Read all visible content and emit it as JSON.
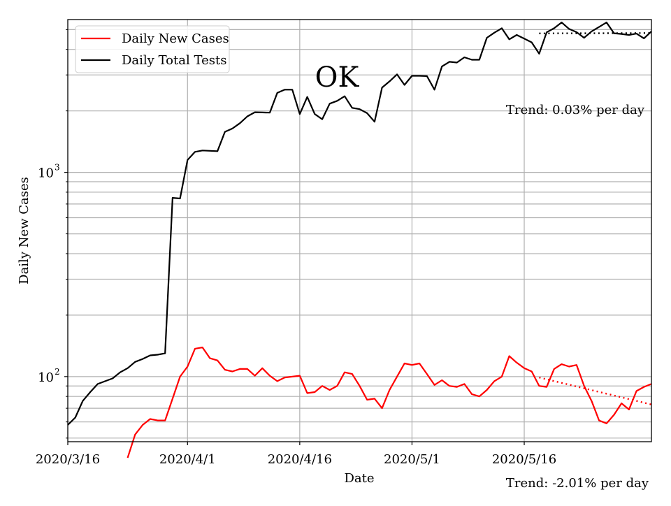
{
  "chart_data": {
    "type": "line",
    "title": "OK",
    "xlabel": "Date",
    "ylabel": "Daily New Cases",
    "y_scale": "log",
    "ylim": [
      48,
      5600
    ],
    "xlim": [
      "2020-03-16",
      "2020-06-02"
    ],
    "grid": true,
    "legend_position": "top-left",
    "x_ticks": [
      {
        "date": "2020-03-16",
        "label": "2020/3/16"
      },
      {
        "date": "2020-04-01",
        "label": "2020/4/1"
      },
      {
        "date": "2020-04-16",
        "label": "2020/4/16"
      },
      {
        "date": "2020-05-01",
        "label": "2020/5/1"
      },
      {
        "date": "2020-05-16",
        "label": "2020/5/16"
      }
    ],
    "y_ticks": [
      {
        "value": 100,
        "label": "10",
        "exponent": "2"
      },
      {
        "value": 1000,
        "label": "10",
        "exponent": "3"
      }
    ],
    "series": [
      {
        "name": "Daily New Cases",
        "color": "#ff0000",
        "points": [
          [
            "2020-03-24",
            40
          ],
          [
            "2020-03-25",
            52
          ],
          [
            "2020-03-26",
            58
          ],
          [
            "2020-03-27",
            62
          ],
          [
            "2020-03-28",
            61
          ],
          [
            "2020-03-29",
            61
          ],
          [
            "2020-03-30",
            78
          ],
          [
            "2020-03-31",
            100
          ],
          [
            "2020-04-01",
            112
          ],
          [
            "2020-04-02",
            137
          ],
          [
            "2020-04-03",
            139
          ],
          [
            "2020-04-04",
            123
          ],
          [
            "2020-04-05",
            120
          ],
          [
            "2020-04-06",
            108
          ],
          [
            "2020-04-07",
            106
          ],
          [
            "2020-04-08",
            109
          ],
          [
            "2020-04-09",
            109
          ],
          [
            "2020-04-10",
            101
          ],
          [
            "2020-04-11",
            110
          ],
          [
            "2020-04-12",
            101
          ],
          [
            "2020-04-13",
            95
          ],
          [
            "2020-04-14",
            99
          ],
          [
            "2020-04-15",
            100
          ],
          [
            "2020-04-16",
            101
          ],
          [
            "2020-04-17",
            83
          ],
          [
            "2020-04-18",
            84
          ],
          [
            "2020-04-19",
            90
          ],
          [
            "2020-04-20",
            86
          ],
          [
            "2020-04-21",
            90
          ],
          [
            "2020-04-22",
            105
          ],
          [
            "2020-04-23",
            103
          ],
          [
            "2020-04-24",
            90
          ],
          [
            "2020-04-25",
            77
          ],
          [
            "2020-04-26",
            78
          ],
          [
            "2020-04-27",
            70
          ],
          [
            "2020-04-28",
            86
          ],
          [
            "2020-04-29",
            100
          ],
          [
            "2020-04-30",
            116
          ],
          [
            "2020-05-01",
            114
          ],
          [
            "2020-05-02",
            116
          ],
          [
            "2020-05-03",
            103
          ],
          [
            "2020-05-04",
            91
          ],
          [
            "2020-05-05",
            96
          ],
          [
            "2020-05-06",
            90
          ],
          [
            "2020-05-07",
            89
          ],
          [
            "2020-05-08",
            92
          ],
          [
            "2020-05-09",
            82
          ],
          [
            "2020-05-10",
            80
          ],
          [
            "2020-05-11",
            86
          ],
          [
            "2020-05-12",
            95
          ],
          [
            "2020-05-13",
            100
          ],
          [
            "2020-05-14",
            126
          ],
          [
            "2020-05-15",
            117
          ],
          [
            "2020-05-16",
            110
          ],
          [
            "2020-05-17",
            106
          ],
          [
            "2020-05-18",
            90
          ],
          [
            "2020-05-19",
            89
          ],
          [
            "2020-05-20",
            109
          ],
          [
            "2020-05-21",
            115
          ],
          [
            "2020-05-22",
            112
          ],
          [
            "2020-05-23",
            114
          ],
          [
            "2020-05-24",
            90
          ],
          [
            "2020-05-25",
            76
          ],
          [
            "2020-05-26",
            61
          ],
          [
            "2020-05-27",
            59
          ],
          [
            "2020-05-28",
            65
          ],
          [
            "2020-05-29",
            74
          ],
          [
            "2020-05-30",
            69
          ],
          [
            "2020-05-31",
            85
          ],
          [
            "2020-06-01",
            89
          ],
          [
            "2020-06-02",
            92
          ]
        ]
      },
      {
        "name": "Daily Total Tests",
        "color": "#000000",
        "points": [
          [
            "2020-03-16",
            58
          ],
          [
            "2020-03-17",
            63
          ],
          [
            "2020-03-18",
            76
          ],
          [
            "2020-03-19",
            84
          ],
          [
            "2020-03-20",
            92
          ],
          [
            "2020-03-21",
            95
          ],
          [
            "2020-03-22",
            98
          ],
          [
            "2020-03-23",
            105
          ],
          [
            "2020-03-24",
            110
          ],
          [
            "2020-03-25",
            118
          ],
          [
            "2020-03-26",
            122
          ],
          [
            "2020-03-27",
            127
          ],
          [
            "2020-03-28",
            128
          ],
          [
            "2020-03-29",
            130
          ],
          [
            "2020-03-30",
            750
          ],
          [
            "2020-03-31",
            745
          ],
          [
            "2020-04-01",
            1150
          ],
          [
            "2020-04-02",
            1260
          ],
          [
            "2020-04-03",
            1280
          ],
          [
            "2020-04-04",
            1275
          ],
          [
            "2020-04-05",
            1270
          ],
          [
            "2020-04-06",
            1580
          ],
          [
            "2020-04-07",
            1640
          ],
          [
            "2020-04-08",
            1740
          ],
          [
            "2020-04-09",
            1880
          ],
          [
            "2020-04-10",
            1970
          ],
          [
            "2020-04-11",
            1965
          ],
          [
            "2020-04-12",
            1960
          ],
          [
            "2020-04-13",
            2450
          ],
          [
            "2020-04-14",
            2540
          ],
          [
            "2020-04-15",
            2540
          ],
          [
            "2020-04-16",
            1930
          ],
          [
            "2020-04-17",
            2340
          ],
          [
            "2020-04-18",
            1930
          ],
          [
            "2020-04-19",
            1820
          ],
          [
            "2020-04-20",
            2170
          ],
          [
            "2020-04-21",
            2240
          ],
          [
            "2020-04-22",
            2360
          ],
          [
            "2020-04-23",
            2070
          ],
          [
            "2020-04-24",
            2040
          ],
          [
            "2020-04-25",
            1950
          ],
          [
            "2020-04-26",
            1770
          ],
          [
            "2020-04-27",
            2600
          ],
          [
            "2020-04-28",
            2790
          ],
          [
            "2020-04-29",
            3020
          ],
          [
            "2020-04-30",
            2680
          ],
          [
            "2020-05-01",
            2970
          ],
          [
            "2020-05-02",
            2970
          ],
          [
            "2020-05-03",
            2960
          ],
          [
            "2020-05-04",
            2540
          ],
          [
            "2020-05-05",
            3300
          ],
          [
            "2020-05-06",
            3480
          ],
          [
            "2020-05-07",
            3450
          ],
          [
            "2020-05-08",
            3660
          ],
          [
            "2020-05-09",
            3560
          ],
          [
            "2020-05-10",
            3560
          ],
          [
            "2020-05-11",
            4560
          ],
          [
            "2020-05-12",
            4830
          ],
          [
            "2020-05-13",
            5080
          ],
          [
            "2020-05-14",
            4480
          ],
          [
            "2020-05-15",
            4710
          ],
          [
            "2020-05-16",
            4520
          ],
          [
            "2020-05-17",
            4330
          ],
          [
            "2020-05-18",
            3810
          ],
          [
            "2020-05-19",
            4850
          ],
          [
            "2020-05-20",
            5080
          ],
          [
            "2020-05-21",
            5420
          ],
          [
            "2020-05-22",
            5040
          ],
          [
            "2020-05-23",
            4860
          ],
          [
            "2020-05-24",
            4560
          ],
          [
            "2020-05-25",
            4900
          ],
          [
            "2020-05-26",
            5150
          ],
          [
            "2020-05-27",
            5420
          ],
          [
            "2020-05-28",
            4800
          ],
          [
            "2020-05-29",
            4760
          ],
          [
            "2020-05-30",
            4710
          ],
          [
            "2020-05-31",
            4780
          ],
          [
            "2020-06-01",
            4530
          ],
          [
            "2020-06-02",
            4900
          ]
        ]
      }
    ],
    "trend_lines": [
      {
        "series": "Daily Total Tests",
        "color": "#000000",
        "points": [
          [
            "2020-05-18",
            4790
          ],
          [
            "2020-06-02",
            4810
          ]
        ],
        "label": "Trend: 0.03% per day"
      },
      {
        "series": "Daily New Cases",
        "color": "#ff0000",
        "points": [
          [
            "2020-05-18",
            99
          ],
          [
            "2020-06-02",
            73
          ]
        ],
        "label": "Trend: -2.01% per day"
      }
    ]
  }
}
